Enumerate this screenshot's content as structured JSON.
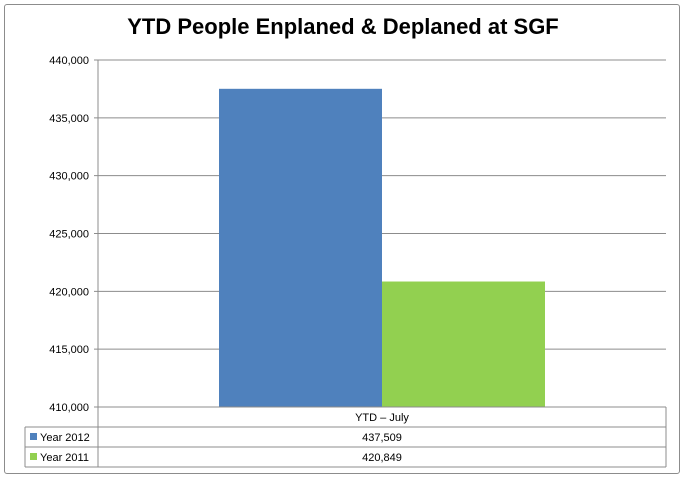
{
  "chart_data": {
    "type": "bar",
    "title": "YTD People Enplaned & Deplaned at SGF",
    "categories": [
      "YTD – July"
    ],
    "series": [
      {
        "name": "Year 2012",
        "values": [
          437509
        ],
        "value_label": "437,509",
        "color": "#4f81bd"
      },
      {
        "name": "Year 2011",
        "values": [
          420849
        ],
        "value_label": "420,849",
        "color": "#92d050"
      }
    ],
    "ylim": [
      410000,
      440000
    ],
    "yticks": [
      410000,
      415000,
      420000,
      425000,
      430000,
      435000,
      440000
    ],
    "ytick_labels": [
      "410,000",
      "415,000",
      "420,000",
      "425,000",
      "430,000",
      "435,000",
      "440,000"
    ],
    "grid": true,
    "legend": "data-table",
    "xlabel": "",
    "ylabel": ""
  }
}
